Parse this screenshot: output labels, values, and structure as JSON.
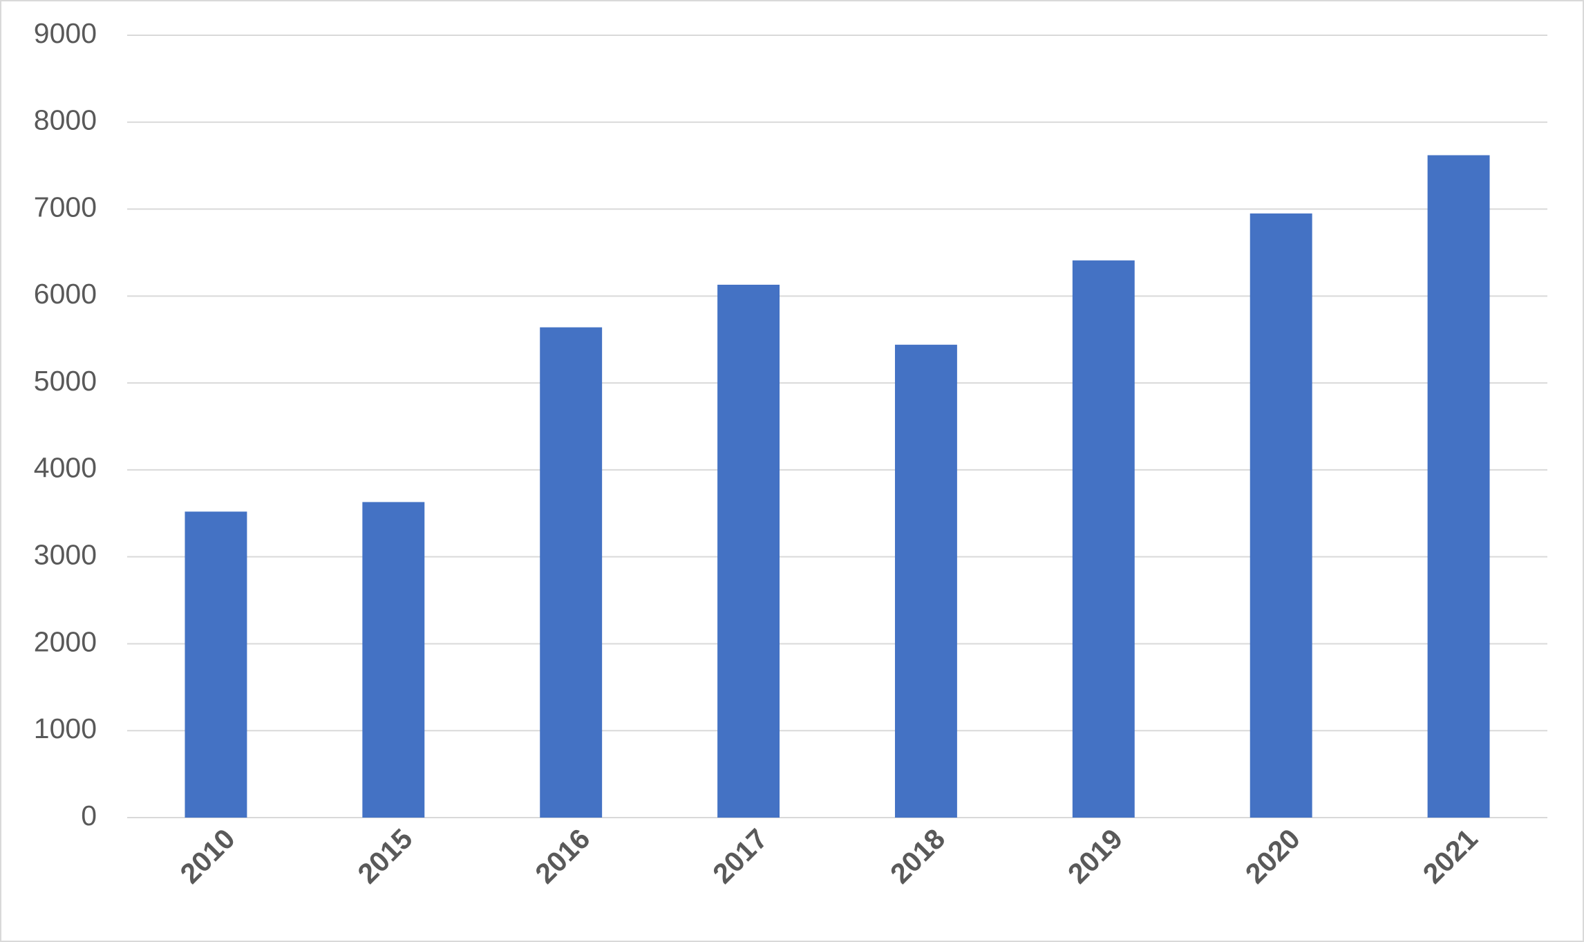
{
  "chart_data": {
    "type": "bar",
    "categories": [
      "2010",
      "2015",
      "2016",
      "2017",
      "2018",
      "2019",
      "2020",
      "2021"
    ],
    "values": [
      3520,
      3630,
      5640,
      6130,
      5440,
      6410,
      6950,
      7620
    ],
    "color": "#4472c4",
    "ylim": [
      0,
      9000
    ],
    "yticks": [
      0,
      1000,
      2000,
      3000,
      4000,
      5000,
      6000,
      7000,
      8000,
      9000
    ],
    "grid": true
  }
}
